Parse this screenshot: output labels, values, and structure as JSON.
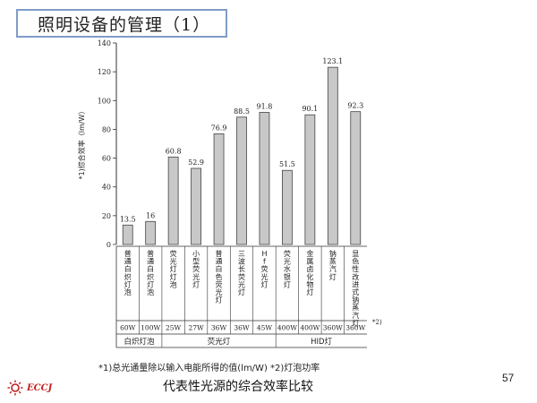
{
  "slide": {
    "title": "照明设备的管理（1）",
    "caption": "代表性光源的综合效率比较",
    "footnote": "*1)总光通量除以输入电能所得的值(lm/W) *2)灯泡功率",
    "page_number": "57",
    "logo_text": "ECCJ",
    "logo_icon": "sun-icon",
    "accent_color": "#7f9cc7",
    "logo_color": "#c21d1d"
  },
  "chart_data": {
    "type": "bar",
    "ylabel": "*1)综合效率（lm/W）",
    "ylim": [
      0,
      140
    ],
    "yticks": [
      0,
      20,
      40,
      60,
      80,
      100,
      120,
      140
    ],
    "categories": [
      "普通白炽灯泡",
      "普通白炽灯泡",
      "荧光灯灯泡",
      "小型荧光灯",
      "普通白色荧光灯",
      "三波长荧光灯",
      "Hf荧光灯",
      "荧光水银灯",
      "金属卤化物灯",
      "钠蒸汽灯",
      "显色性改进式钠蒸汽灯"
    ],
    "values": [
      13.5,
      16,
      60.8,
      52.9,
      76.9,
      88.5,
      91.8,
      51.5,
      90.1,
      123.1,
      92.3
    ],
    "value_labels": [
      "13.5",
      "16",
      "60.8",
      "52.9",
      "76.9",
      "88.5",
      "91.8",
      "51.5",
      "90.1",
      "123.1",
      "92.3"
    ],
    "wattages": [
      "60W",
      "100W",
      "25W",
      "27W",
      "36W",
      "36W",
      "45W",
      "400W",
      "400W",
      "360W",
      "360W"
    ],
    "wattage_note": "*2)",
    "groups": [
      {
        "name": "白炽灯泡",
        "count": 2
      },
      {
        "name": "荧光灯",
        "count": 5
      },
      {
        "name": "HID灯",
        "count": 4
      }
    ],
    "bar_color": "#c8c8c8"
  }
}
